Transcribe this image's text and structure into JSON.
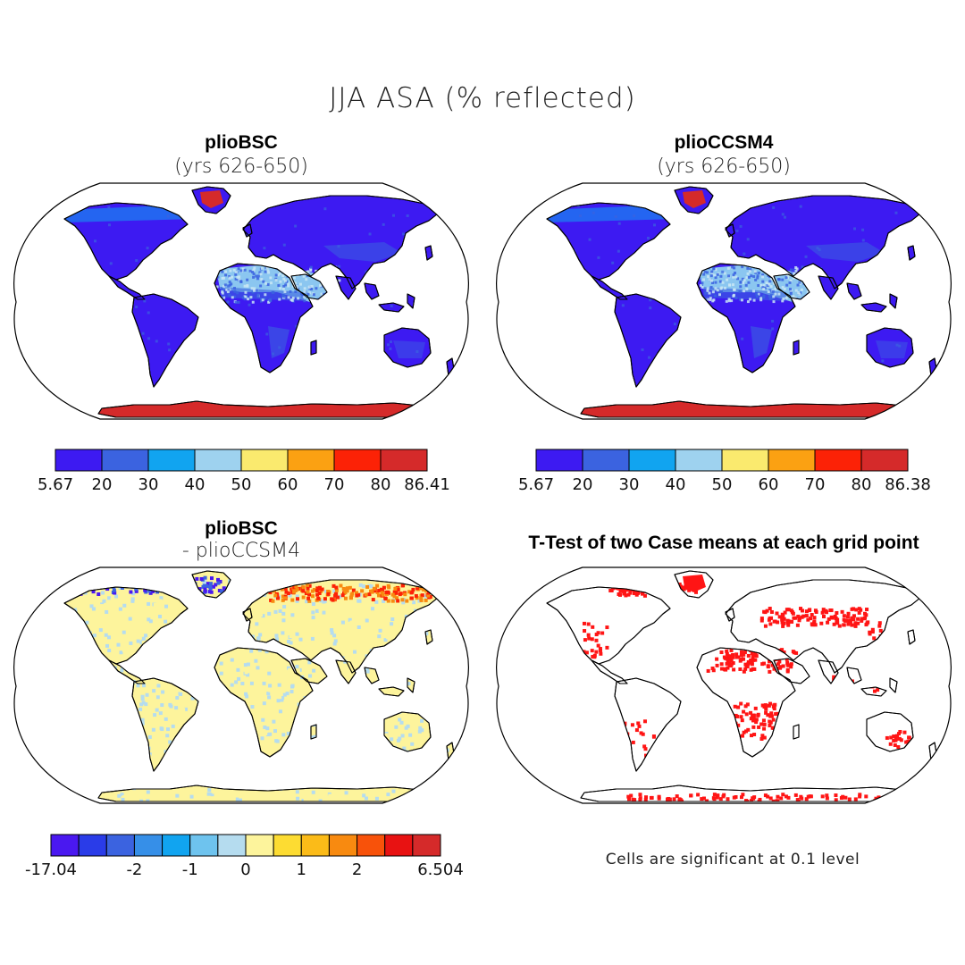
{
  "title": "JJA ASA (% reflected)",
  "panels": {
    "p1": {
      "title": "plioBSC",
      "subtitle": "(yrs 626-650)"
    },
    "p2": {
      "title": "plioCCSM4",
      "subtitle": "(yrs 626-650)"
    },
    "p3": {
      "title": "plioBSC",
      "subtitle": "- plioCCSM4"
    },
    "p4": {
      "title": "T-Test of two Case means at each grid point",
      "note": "Cells are significant at 0.1 level"
    }
  },
  "colorbars": {
    "cb1": {
      "colors": [
        "#3d1af2",
        "#3b63e0",
        "#11a4f0",
        "#9ed2ef",
        "#faea6e",
        "#fba112",
        "#fc2206",
        "#d52a2a"
      ],
      "labels": [
        "5.67",
        "20",
        "30",
        "40",
        "50",
        "60",
        "70",
        "80",
        "86.41"
      ]
    },
    "cb2": {
      "colors": [
        "#3d1af2",
        "#3b63e0",
        "#11a4f0",
        "#9ed2ef",
        "#faea6e",
        "#fba112",
        "#fc2206",
        "#d52a2a"
      ],
      "labels": [
        "5.67",
        "20",
        "30",
        "40",
        "50",
        "60",
        "70",
        "80",
        "86.38"
      ]
    },
    "cb3": {
      "colors": [
        "#4a18f0",
        "#2a3ce8",
        "#3b63e0",
        "#368fe8",
        "#11a4f0",
        "#6ec3ee",
        "#b5dcef",
        "#fdf49c",
        "#fddc32",
        "#fbbb18",
        "#f88a10",
        "#f8520a",
        "#e81212",
        "#d52a2a"
      ],
      "labels": [
        "-17.04",
        "-2",
        "-1",
        "0",
        "1",
        "2",
        "6.504"
      ],
      "label_at_boundary": [
        0,
        3,
        5,
        7,
        9,
        11,
        14
      ]
    }
  },
  "map_colors": {
    "land_low": "#3d1af2",
    "land_mid": "#3b63e0",
    "desert": "#8fd0ef",
    "ice": "#d52a2a",
    "diff_pos": "#fdf49c",
    "diff_neg": "#b5dcef",
    "diff_strong_pos": "#f88a10",
    "diff_strong_neg": "#3b63e0",
    "signif": "#ff1515"
  }
}
